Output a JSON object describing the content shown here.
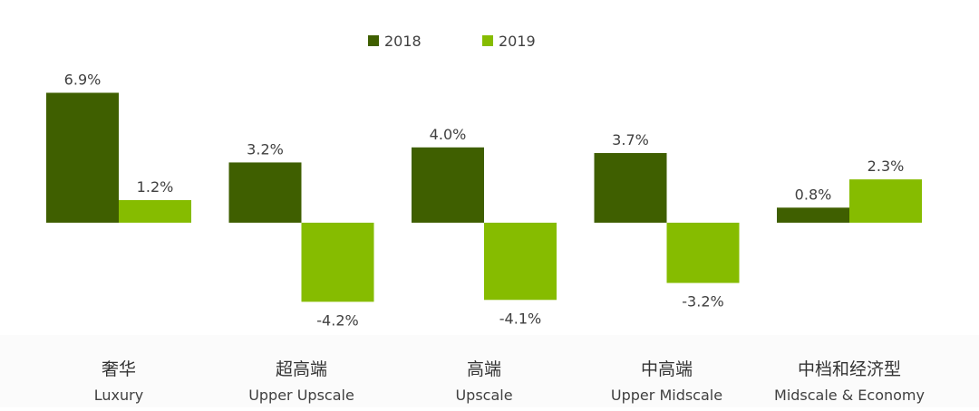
{
  "chart_data": {
    "type": "bar",
    "title": "",
    "xlabel": "",
    "ylabel": "",
    "categories": [
      {
        "zh": "奢华",
        "en": "Luxury"
      },
      {
        "zh": "超高端",
        "en": "Upper Upscale"
      },
      {
        "zh": "高端",
        "en": "Upscale"
      },
      {
        "zh": "中高端",
        "en": "Upper Midscale"
      },
      {
        "zh": "中档和经济型",
        "en": "Midscale & Economy"
      }
    ],
    "series": [
      {
        "name": "2018",
        "color": "#3f5f00",
        "values": [
          6.9,
          3.2,
          4.0,
          3.7,
          0.8
        ],
        "labels": [
          "6.9%",
          "3.2%",
          "4.0%",
          "3.7%",
          "0.8%"
        ]
      },
      {
        "name": "2019",
        "color": "#86bc00",
        "values": [
          1.2,
          -4.2,
          -4.1,
          -3.2,
          2.3
        ],
        "labels": [
          "1.2%",
          "-4.2%",
          "-4.1%",
          "-3.2%",
          "2.3%"
        ]
      }
    ],
    "ylim": [
      -4.5,
      7.5
    ],
    "grid": false,
    "legend": "top-center",
    "value_format": "percent"
  }
}
